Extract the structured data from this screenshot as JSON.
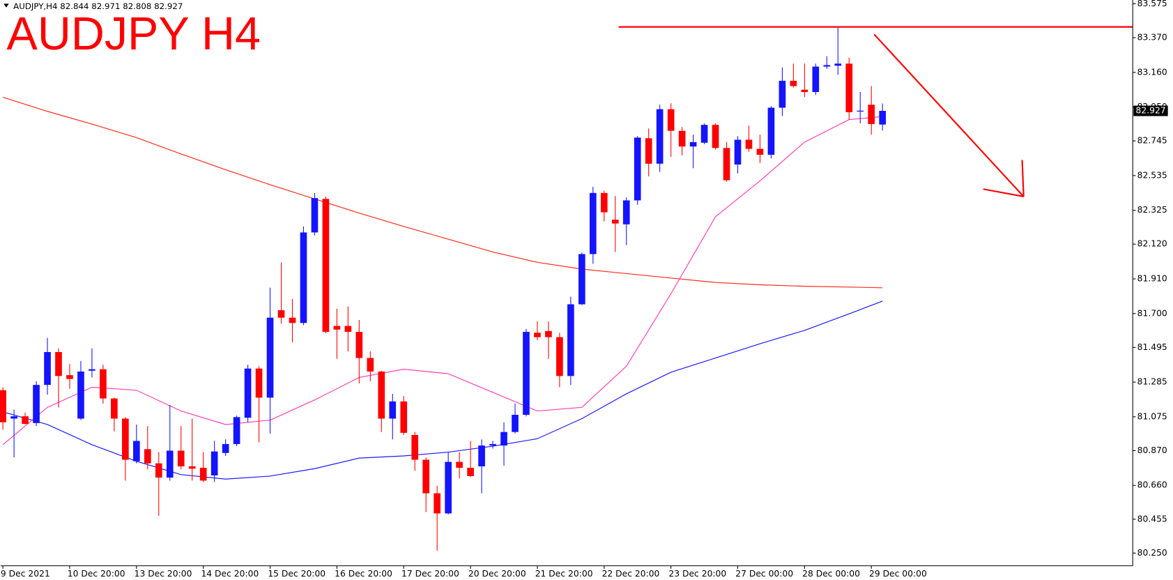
{
  "chart_data": {
    "type": "candlestick",
    "title": "AUDJPY,H4  82.844 82.971 82.808 82.927",
    "annotation": "AUDJPY H4",
    "ylim": [
      80.173,
      83.598
    ],
    "yticks": [
      83.575,
      {
        "value": 83.37,
        "label": "83.370"
      },
      {
        "value": 83.16,
        "label": "83.160"
      },
      {
        "value": 82.95,
        "label": "82.950"
      },
      82.745,
      82.535,
      82.325,
      {
        "value": 82.12,
        "label": "82.120"
      },
      {
        "value": 81.91,
        "label": "81.910"
      },
      {
        "value": 81.7,
        "label": "81.700"
      },
      81.495,
      81.285,
      81.075,
      {
        "value": 80.87,
        "label": "80.870"
      },
      {
        "value": 80.66,
        "label": "80.660"
      },
      80.455,
      {
        "value": 80.25,
        "label": "80.250"
      }
    ],
    "categories": [
      "9 Dec 2021",
      null,
      null,
      null,
      null,
      null,
      "10 Dec 20:00",
      null,
      null,
      null,
      null,
      null,
      "13 Dec 20:00",
      null,
      null,
      null,
      null,
      null,
      "14 Dec 20:00",
      null,
      null,
      null,
      null,
      null,
      "15 Dec 20:00",
      null,
      null,
      null,
      null,
      null,
      "16 Dec 20:00",
      null,
      null,
      null,
      null,
      null,
      "17 Dec 20:00",
      null,
      null,
      null,
      null,
      null,
      "20 Dec 20:00",
      null,
      null,
      null,
      null,
      null,
      "21 Dec 20:00",
      null,
      null,
      null,
      null,
      null,
      "22 Dec 20:00",
      null,
      null,
      null,
      null,
      null,
      "23 Dec 20:00",
      null,
      null,
      null,
      null,
      null,
      "27 Dec 00:00",
      null,
      null,
      null,
      null,
      null,
      "28 Dec 00:00",
      null,
      null,
      null,
      null,
      null,
      "29 Dec 00:00",
      null
    ],
    "open": [
      81.236,
      81.064,
      81.078,
      81.037,
      81.268,
      81.467,
      81.327,
      81.064,
      81.354,
      81.363,
      81.186,
      81.064,
      80.806,
      80.879,
      80.793,
      80.707,
      80.87,
      80.775,
      80.766,
      80.72,
      80.856,
      80.91,
      81.069,
      81.367,
      81.191,
      81.72,
      81.675,
      81.643,
      82.191,
      82.394,
      81.625,
      81.625,
      81.589,
      81.431,
      81.349,
      81.064,
      81.168,
      80.965,
      80.815,
      80.612,
      80.49,
      80.802,
      80.766,
      80.775,
      80.901,
      80.901,
      80.983,
      81.087,
      81.584,
      81.594,
      81.557,
      81.322,
      81.756,
      82.06,
      82.43,
      82.268,
      82.24,
      82.385,
      82.761,
      82.607,
      82.937,
      82.806,
      82.711,
      82.734,
      82.842,
      82.702,
      82.602,
      82.752,
      82.697,
      82.661,
      82.946,
      83.109,
      83.055,
      83.041,
      83.195,
      83.2,
      83.213,
      82.924,
      82.964,
      82.844
    ],
    "high": [
      81.254,
      81.118,
      81.1,
      81.29,
      81.553,
      81.489,
      81.395,
      81.413,
      81.489,
      81.39,
      81.191,
      81.073,
      81.028,
      81.019,
      80.861,
      81.146,
      81.019,
      81.064,
      80.861,
      80.929,
      80.938,
      81.082,
      81.39,
      81.381,
      81.856,
      82.01,
      81.788,
      82.227,
      82.43,
      82.408,
      81.729,
      81.743,
      81.661,
      81.471,
      81.354,
      81.214,
      81.2,
      80.983,
      80.829,
      80.657,
      80.861,
      80.861,
      80.929,
      80.938,
      80.929,
      81.042,
      81.155,
      81.607,
      81.652,
      81.652,
      81.584,
      81.802,
      82.069,
      82.467,
      82.444,
      82.412,
      82.403,
      82.774,
      82.82,
      82.964,
      82.973,
      82.829,
      82.783,
      82.851,
      82.851,
      82.738,
      82.774,
      82.838,
      82.783,
      82.955,
      83.19,
      83.213,
      83.213,
      83.213,
      83.258,
      83.43,
      83.249,
      83.041,
      83.077,
      82.971
    ],
    "low": [
      80.996,
      80.829,
      81.028,
      81.019,
      81.209,
      81.132,
      81.245,
      81.055,
      81.313,
      81.155,
      80.987,
      80.689,
      80.793,
      80.757,
      80.476,
      80.689,
      80.757,
      80.689,
      80.68,
      80.68,
      80.838,
      80.897,
      81.042,
      80.92,
      80.974,
      81.639,
      81.526,
      81.63,
      82.173,
      81.58,
      81.426,
      81.471,
      81.277,
      81.29,
      80.983,
      80.938,
      80.965,
      80.748,
      80.499,
      80.264,
      80.485,
      80.702,
      80.711,
      80.612,
      80.883,
      80.779,
      80.974,
      81.078,
      81.539,
      81.426,
      81.254,
      81.268,
      81.752,
      82.001,
      82.258,
      82.073,
      82.114,
      82.358,
      82.53,
      82.557,
      82.648,
      82.657,
      82.58,
      82.725,
      82.693,
      82.498,
      82.548,
      82.679,
      82.611,
      82.639,
      82.896,
      83.068,
      83.01,
      83.023,
      83.181,
      83.145,
      82.874,
      82.851,
      82.783,
      82.808
    ],
    "close": [
      81.042,
      81.078,
      81.032,
      81.268,
      81.467,
      81.322,
      81.304,
      81.349,
      81.363,
      81.186,
      81.064,
      80.815,
      80.929,
      80.793,
      80.707,
      80.87,
      80.775,
      80.761,
      80.689,
      80.865,
      80.91,
      81.073,
      81.367,
      81.191,
      81.675,
      81.675,
      81.643,
      82.191,
      82.399,
      81.589,
      81.603,
      81.589,
      81.431,
      81.349,
      81.064,
      81.168,
      80.978,
      80.815,
      80.612,
      80.49,
      80.802,
      80.766,
      80.716,
      80.901,
      80.91,
      80.983,
      81.087,
      81.589,
      81.557,
      81.557,
      81.322,
      81.756,
      82.06,
      82.43,
      82.313,
      82.245,
      82.385,
      82.765,
      82.607,
      82.937,
      82.806,
      82.711,
      82.738,
      82.842,
      82.702,
      82.507,
      82.752,
      82.697,
      82.661,
      82.946,
      83.109,
      83.077,
      83.041,
      83.195,
      83.204,
      83.213,
      82.919,
      82.928,
      82.847,
      82.927
    ],
    "up_color": "#1414ff",
    "down_color": "#ff0000",
    "moving_averages": [
      {
        "color": "#ff2a1a",
        "x": [
          0,
          4,
          8,
          12,
          16,
          20,
          24,
          28,
          32,
          36,
          40,
          44,
          48,
          52,
          56,
          60,
          64,
          68,
          72,
          76,
          79
        ],
        "values": [
          83.01,
          82.924,
          82.847,
          82.765,
          82.666,
          82.571,
          82.48,
          82.394,
          82.308,
          82.227,
          82.15,
          82.073,
          82.01,
          81.969,
          81.942,
          81.915,
          81.888,
          81.874,
          81.865,
          81.86,
          81.856
        ]
      },
      {
        "color": "#1a1aff",
        "x": [
          0,
          4,
          8,
          12,
          16,
          20,
          24,
          28,
          32,
          36,
          40,
          44,
          48,
          52,
          56,
          60,
          64,
          68,
          72,
          76,
          79
        ],
        "values": [
          81.105,
          81.028,
          80.906,
          80.806,
          80.725,
          80.698,
          80.716,
          80.761,
          80.825,
          80.838,
          80.861,
          80.897,
          80.942,
          81.064,
          81.214,
          81.345,
          81.431,
          81.517,
          81.598,
          81.698,
          81.775
        ]
      },
      {
        "color": "#ff3fb4",
        "x": [
          0,
          4,
          8,
          12,
          16,
          20,
          24,
          28,
          32,
          36,
          40,
          44,
          48,
          52,
          56,
          60,
          64,
          68,
          72,
          76,
          79
        ],
        "values": [
          80.906,
          81.132,
          81.254,
          81.236,
          81.11,
          81.028,
          81.055,
          81.177,
          81.313,
          81.363,
          81.336,
          81.223,
          81.11,
          81.132,
          81.381,
          81.82,
          82.286,
          82.503,
          82.738,
          82.874,
          82.892
        ]
      }
    ],
    "resistance_line": 83.435,
    "resistance_color": "#ff0000",
    "last_price": 82.927
  }
}
